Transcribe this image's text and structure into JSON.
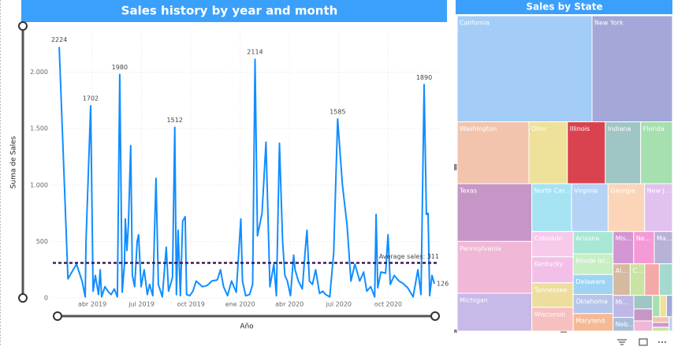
{
  "chart_data": [
    {
      "type": "line",
      "title": "Sales history by year and month",
      "x_label": "Año",
      "y_label": "Suma de Sales",
      "color": "#118dff",
      "x": [
        0.99,
        1.52,
        2.04,
        2.38,
        2.57,
        2.62,
        2.9,
        3.05,
        3.19,
        3.38,
        3.48,
        3.57,
        3.77,
        4.0,
        4.15,
        4.34,
        4.53,
        4.67,
        4.82,
        4.96,
        5.01,
        5.11,
        5.2,
        5.34,
        5.44,
        5.58,
        5.73,
        5.82,
        5.97,
        6.16,
        6.35,
        6.49,
        6.68,
        6.88,
        7.02,
        7.26,
        7.5,
        7.64,
        7.88,
        8.02,
        8.12,
        8.22,
        8.36,
        8.5,
        8.65,
        8.74,
        8.93,
        9.12,
        9.32,
        9.7,
        9.99,
        10.27,
        10.61,
        10.8,
        10.99,
        11.23,
        11.47,
        11.76,
        12.04,
        12.14,
        12.33,
        12.57,
        12.76,
        12.9,
        13.05,
        13.33,
        13.57,
        13.81,
        14.05,
        14.2,
        14.39,
        14.58,
        14.72,
        14.87,
        15.06,
        15.25,
        15.34,
        15.54,
        15.78,
        15.97,
        16.06,
        16.21,
        16.4,
        16.59,
        16.83,
        17.02,
        17.21,
        17.45,
        17.69,
        17.93,
        18.22,
        18.5,
        18.74,
        18.98,
        19.27,
        19.51,
        19.7,
        19.94,
        20.18,
        20.27,
        20.37,
        20.56,
        20.85,
        20.99,
        21.13,
        21.37,
        21.66,
        21.9,
        22.19,
        22.52,
        22.81,
        23.0,
        23.19,
        23.33,
        23.43,
        23.53,
        23.67,
        23.81
      ],
      "values": [
        2224,
        170,
        300,
        150,
        10,
        500,
        1702,
        60,
        200,
        30,
        250,
        10,
        100,
        50,
        30,
        80,
        10,
        1980,
        50,
        300,
        700,
        420,
        650,
        1350,
        200,
        100,
        500,
        560,
        100,
        250,
        30,
        120,
        20,
        1060,
        120,
        10,
        450,
        60,
        180,
        1512,
        30,
        600,
        20,
        680,
        720,
        30,
        20,
        60,
        150,
        100,
        110,
        150,
        160,
        250,
        100,
        20,
        150,
        50,
        700,
        150,
        20,
        30,
        120,
        2114,
        550,
        750,
        1380,
        100,
        300,
        20,
        1370,
        500,
        200,
        150,
        20,
        380,
        250,
        150,
        80,
        450,
        600,
        150,
        120,
        250,
        40,
        60,
        30,
        10,
        400,
        1585,
        1000,
        650,
        150,
        300,
        150,
        230,
        60,
        100,
        10,
        740,
        90,
        230,
        220,
        560,
        120,
        200,
        150,
        130,
        90,
        10,
        250,
        30,
        1890,
        740,
        750,
        20,
        200,
        126
      ],
      "xlim": [
        0.6,
        24.1
      ],
      "xticks": [
        {
          "value": 3,
          "label": "abr 2019"
        },
        {
          "value": 6,
          "label": "jul 2019"
        },
        {
          "value": 9,
          "label": "oct 2019"
        },
        {
          "value": 12,
          "label": "ene 2020"
        },
        {
          "value": 15,
          "label": "abr 2020"
        },
        {
          "value": 18,
          "label": "jul 2020"
        },
        {
          "value": 21,
          "label": "oct 2020"
        }
      ],
      "ylim": [
        0,
        2360
      ],
      "yticks": [
        0,
        500,
        {
          "value": 1000,
          "label": "1.000"
        },
        {
          "value": 1500,
          "label": "1.500"
        },
        {
          "value": 2000,
          "label": "2.000"
        }
      ],
      "grid": true,
      "reference_line": {
        "label": "Average sales: 311",
        "value": 311,
        "color": "#3d1b5b"
      }
    },
    {
      "type": "treemap",
      "title": "Sales by State",
      "categories": [
        "California",
        "New York",
        "Washington",
        "Ohio",
        "Illinois",
        "Indiana",
        "Florida",
        "Texas",
        "Pennsylvania",
        "Michigan",
        "North Car...",
        "Virginia",
        "Georgia",
        "New J...",
        "Colorado",
        "Kentucky",
        "Tennessee",
        "Wisconsin",
        "Arizona",
        "Rhode Isl...",
        "Delaware",
        "Oklahoma",
        "Maryland",
        "Mis...",
        "Ne...",
        "Ma...",
        "Al...",
        "C...",
        null,
        null,
        "Mi...",
        "Neb...",
        null,
        null,
        null,
        null,
        null,
        null,
        null,
        null,
        null,
        null
      ],
      "values": [
        451000,
        269000,
        140000,
        75000,
        74000,
        69000,
        62000,
        136000,
        122000,
        89000,
        60000,
        55000,
        55000,
        42000,
        33000,
        34000,
        32000,
        31000,
        28000,
        26000,
        25000,
        24000,
        22000,
        21000,
        21000,
        18500,
        17000,
        14500,
        14500,
        13000,
        14500,
        9000,
        8000,
        7000,
        6000,
        5000,
        4500,
        4000,
        3000,
        2500,
        2000,
        1500
      ],
      "colors": [
        "#a3cdf7",
        "#a3a8d8",
        "#f2c4ae",
        "#efe19a",
        "#d9434f",
        "#9fc5c5",
        "#a6dfb0",
        "#c697c6",
        "#f0b7d6",
        "#c7b9e8",
        "#a5e3f3",
        "#b4d3f5",
        "#fcd5b8",
        "#e2c1ee",
        "#f7c9ea",
        "#f3bfe8",
        "#eede9d",
        "#f6c0c0",
        "#a8e7d5",
        "#c8eec4",
        "#9ed3f3",
        "#b6c5ea",
        "#f6b996",
        "#d296d3",
        "#f59ad6",
        "#b7b2d6",
        "#d5b9a0",
        "#c9e3a3",
        "#f4a8a8",
        "#a3d9cf",
        "#bfb8e6",
        "#a7bed9",
        "#9fc5c5",
        "#c697c6",
        "#f0b7d6",
        "#a6dfb0",
        "#efe19a",
        "#a3a8d8",
        "#f2c4ae",
        "#d296d3",
        "#c9e3a3",
        "#b4d3f5"
      ]
    }
  ]
}
